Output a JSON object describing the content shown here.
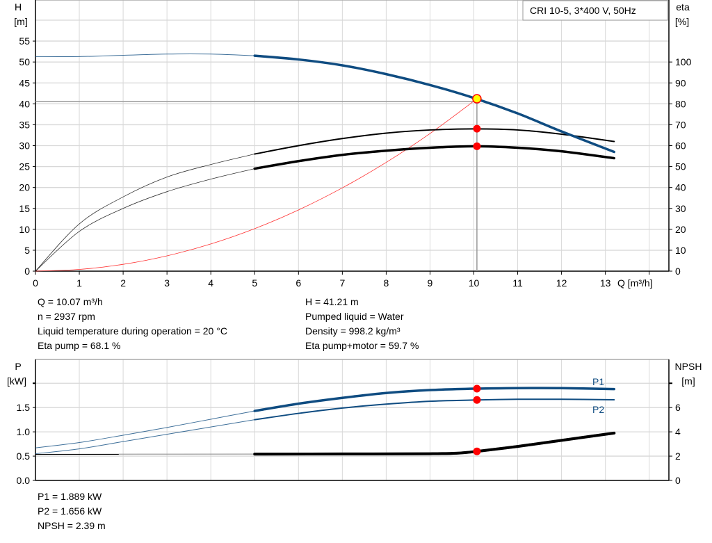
{
  "legend_box": "CRI 10-5, 3*400 V, 50Hz",
  "colors": {
    "head": "#0f4c81",
    "eta": "#000000",
    "system": "#ff3030",
    "power": "#0f4c81",
    "npsh": "#000000",
    "point": "#ff0000",
    "duty_point": "#ffff00",
    "grid": "#d8d8d8"
  },
  "chart_data": [
    {
      "type": "line",
      "xlabel": "Q [m³/h]",
      "ylabel_left": [
        "H",
        "[m]"
      ],
      "ylabel_right": [
        "eta",
        "[%]"
      ],
      "xlim": [
        0,
        14.4
      ],
      "ylim_left": [
        0,
        60
      ],
      "ylim_right": [
        0,
        120
      ],
      "grid": true,
      "x_ticks": [
        "0",
        "1",
        "2",
        "3",
        "4",
        "5",
        "6",
        "7",
        "8",
        "9",
        "10",
        "11",
        "12",
        "13"
      ],
      "y_left_ticks": [
        "0",
        "5",
        "10",
        "15",
        "20",
        "25",
        "30",
        "35",
        "40",
        "45",
        "50",
        "55"
      ],
      "y_right_ticks": [
        "0",
        "10",
        "20",
        "30",
        "40",
        "50",
        "60",
        "70",
        "80",
        "90",
        "100"
      ],
      "series": [
        {
          "key": "H",
          "axis": "left",
          "x": [
            0,
            1,
            2,
            3,
            4,
            5,
            6,
            7,
            8,
            9,
            10,
            11,
            12,
            13.2
          ],
          "y": [
            51.3,
            51.3,
            51.6,
            51.9,
            51.9,
            51.5,
            50.6,
            49.2,
            47.1,
            44.5,
            41.4,
            37.7,
            33.4,
            28.5
          ]
        },
        {
          "key": "eta_pump",
          "axis": "right",
          "x": [
            0,
            1,
            2,
            3,
            4,
            5,
            6,
            7,
            8,
            9,
            10,
            11,
            12,
            13.2
          ],
          "y": [
            0,
            22.6,
            35.5,
            45,
            51,
            56,
            60,
            63.4,
            66,
            67.5,
            68,
            67.5,
            65.5,
            62
          ]
        },
        {
          "key": "eta_pump_motor",
          "axis": "right",
          "x": [
            0,
            1,
            2,
            3,
            4,
            5,
            6,
            7,
            8,
            9,
            10,
            11,
            12,
            13.2
          ],
          "y": [
            0,
            19,
            30,
            38,
            44,
            49,
            52.6,
            55.6,
            57.6,
            59,
            59.7,
            59,
            57.3,
            54
          ]
        },
        {
          "key": "system",
          "axis": "left",
          "x": [
            0,
            1,
            2,
            3,
            4,
            5,
            6,
            7,
            8,
            9,
            10.07
          ],
          "y": [
            0,
            0.41,
            1.63,
            3.66,
            6.5,
            10.16,
            14.63,
            19.91,
            26.0,
            32.9,
            41.21
          ]
        }
      ],
      "duty_point": {
        "Q": 10.07,
        "H": 41.21,
        "eta_pump": 68.1,
        "eta_pump_motor": 59.7
      }
    },
    {
      "type": "line",
      "ylabel_left": [
        "P",
        "[kW]"
      ],
      "ylabel_right": [
        "NPSH",
        "[m]"
      ],
      "xlim": [
        0,
        14.4
      ],
      "ylim_left": [
        0,
        2.49
      ],
      "ylim_right": [
        0,
        9.96
      ],
      "grid": true,
      "y_left_ticks": [
        "0.0",
        "0.5",
        "1.0",
        "1.5"
      ],
      "y_right_ticks": [
        "0",
        "2",
        "4",
        "6"
      ],
      "series": [
        {
          "key": "P1",
          "name": "P1",
          "axis": "left",
          "x": [
            0,
            1,
            2,
            3,
            4,
            5,
            6,
            7,
            8,
            9,
            10.07,
            11,
            12,
            13.2
          ],
          "y": [
            0.67,
            0.78,
            0.93,
            1.09,
            1.26,
            1.43,
            1.58,
            1.7,
            1.8,
            1.86,
            1.889,
            1.9,
            1.9,
            1.88
          ]
        },
        {
          "key": "P2",
          "name": "P2",
          "axis": "left",
          "x": [
            0,
            1,
            2,
            3,
            4,
            5,
            6,
            7,
            8,
            9,
            10.07,
            11,
            12,
            13.2
          ],
          "y": [
            0.55,
            0.65,
            0.8,
            0.95,
            1.1,
            1.25,
            1.38,
            1.49,
            1.57,
            1.63,
            1.656,
            1.67,
            1.67,
            1.66
          ]
        },
        {
          "key": "NPSH",
          "axis": "right",
          "x": [
            0,
            5,
            7,
            9,
            9.6,
            10.07,
            11,
            12,
            13.2
          ],
          "y": [
            2.15,
            2.17,
            2.18,
            2.2,
            2.24,
            2.39,
            2.8,
            3.3,
            3.9
          ]
        }
      ],
      "duty_point": {
        "Q": 10.07,
        "P1": 1.889,
        "P2": 1.656,
        "NPSH": 2.39
      }
    }
  ],
  "info_top_left": [
    "Q = 10.07 m³/h",
    "n = 2937 rpm",
    "Liquid temperature during operation = 20 °C",
    "Eta pump = 68.1 %"
  ],
  "info_top_right": [
    "H = 41.21 m",
    "Pumped liquid = Water",
    "Density = 998.2 kg/m³",
    "Eta pump+motor = 59.7 %"
  ],
  "info_bottom": [
    "P1 = 1.889 kW",
    "P2 = 1.656 kW",
    "NPSH = 2.39 m"
  ]
}
